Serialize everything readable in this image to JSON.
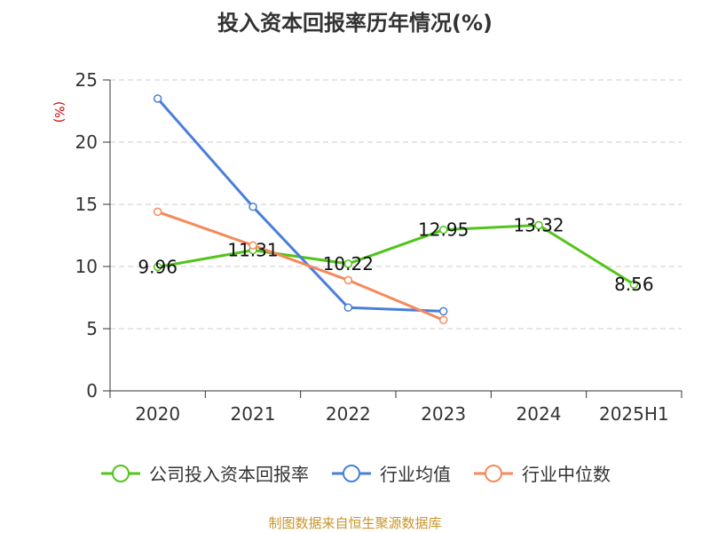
{
  "chart_data": {
    "type": "line",
    "title": "投入资本回报率历年情况(%)",
    "ylabel": "(%)",
    "xlabel": "",
    "categories": [
      "2020",
      "2021",
      "2022",
      "2023",
      "2024",
      "2025H1"
    ],
    "ylim": [
      0,
      25
    ],
    "yticks": [
      0,
      5,
      10,
      15,
      20,
      25
    ],
    "grid": "horizontal dashed",
    "legend_position": "bottom",
    "series": [
      {
        "name": "公司投入资本回报率",
        "color": "#52c41a",
        "labels": true,
        "values": [
          9.96,
          11.31,
          10.22,
          12.95,
          13.32,
          8.56
        ],
        "data_labels": [
          "9.96",
          "11.31",
          "10.22",
          "12.95",
          "13.32",
          "8.56"
        ]
      },
      {
        "name": "行业均值",
        "color": "#4a7fd9",
        "labels": false,
        "values": [
          23.5,
          14.8,
          6.7,
          6.4,
          null,
          null
        ]
      },
      {
        "name": "行业中位数",
        "color": "#f5895b",
        "labels": false,
        "values": [
          14.4,
          11.7,
          8.9,
          5.7,
          null,
          null
        ]
      }
    ]
  },
  "footer": {
    "source": "制图数据来自恒生聚源数据库"
  }
}
